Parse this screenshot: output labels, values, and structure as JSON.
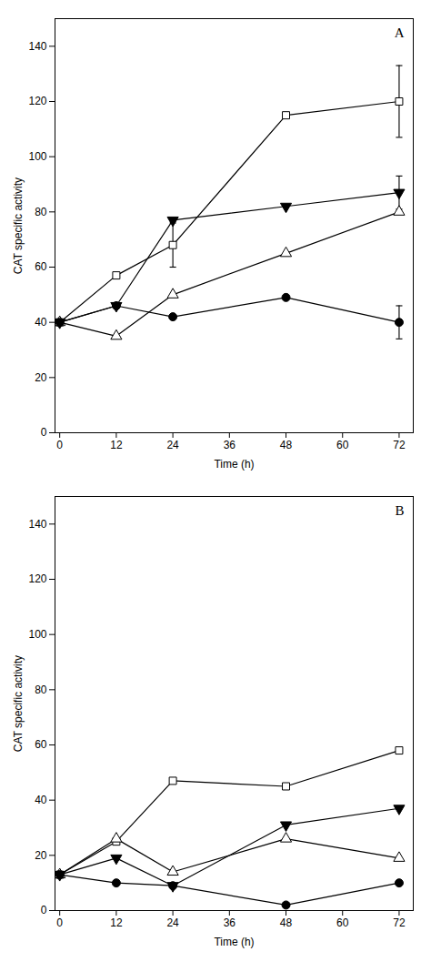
{
  "chart_data": [
    {
      "type": "line",
      "title": "A",
      "xlabel": "Time (h)",
      "ylabel": "CAT specific activity",
      "x": [
        0,
        12,
        24,
        48,
        72
      ],
      "xlim": [
        -1,
        75
      ],
      "xticks": [
        0,
        12,
        24,
        36,
        48,
        60,
        72
      ],
      "ylim": [
        0,
        150
      ],
      "yticks": [
        0,
        20,
        40,
        60,
        80,
        100,
        120,
        140
      ],
      "grid": false,
      "series": [
        {
          "color": "black",
          "marker": "square-open",
          "values": [
            40,
            57,
            68,
            115,
            120
          ],
          "yerr": [
            null,
            null,
            8,
            null,
            13
          ]
        },
        {
          "color": "black",
          "marker": "triangle-down",
          "values": [
            40,
            46,
            77,
            82,
            87
          ],
          "yerr": [
            null,
            null,
            null,
            null,
            6
          ]
        },
        {
          "color": "black",
          "marker": "triangle-open",
          "values": [
            40,
            35,
            50,
            65,
            80
          ],
          "yerr": [
            null,
            null,
            null,
            null,
            null
          ]
        },
        {
          "color": "black",
          "marker": "circle",
          "values": [
            40,
            46,
            42,
            49,
            40
          ],
          "yerr": [
            null,
            null,
            null,
            null,
            6
          ]
        }
      ]
    },
    {
      "type": "line",
      "title": "B",
      "xlabel": "Time (h)",
      "ylabel": "CAT specific activity",
      "x": [
        0,
        12,
        24,
        48,
        72
      ],
      "xlim": [
        -1,
        75
      ],
      "xticks": [
        0,
        12,
        24,
        36,
        48,
        60,
        72
      ],
      "ylim": [
        0,
        150
      ],
      "yticks": [
        0,
        20,
        40,
        60,
        80,
        100,
        120,
        140
      ],
      "grid": false,
      "series": [
        {
          "color": "black",
          "marker": "square-open",
          "values": [
            13,
            25,
            47,
            45,
            58
          ],
          "yerr": [
            null,
            null,
            null,
            null,
            null
          ]
        },
        {
          "color": "black",
          "marker": "triangle-down",
          "values": [
            13,
            19,
            9,
            31,
            37
          ],
          "yerr": [
            null,
            null,
            null,
            null,
            null
          ]
        },
        {
          "color": "black",
          "marker": "triangle-open",
          "values": [
            13,
            26,
            14,
            26,
            19
          ],
          "yerr": [
            null,
            null,
            null,
            null,
            null
          ]
        },
        {
          "color": "black",
          "marker": "circle",
          "values": [
            13,
            10,
            9,
            2,
            10
          ],
          "yerr": [
            null,
            null,
            null,
            null,
            null
          ]
        }
      ]
    }
  ]
}
